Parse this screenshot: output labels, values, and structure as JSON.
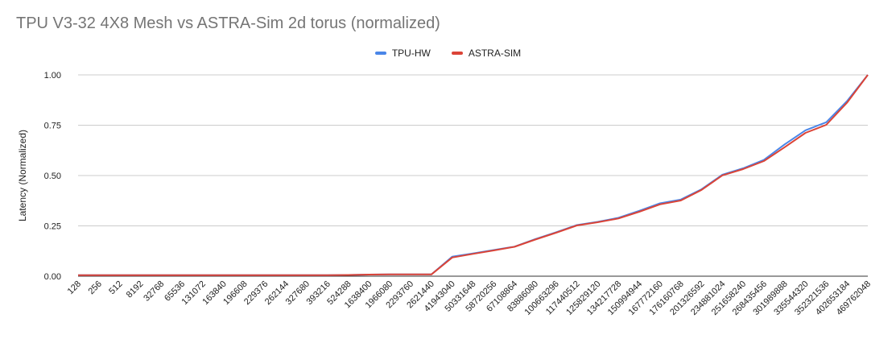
{
  "chart_data": {
    "type": "line",
    "title": "TPU V3-32 4X8 Mesh vs ASTRA-Sim 2d torus (normalized)",
    "ylabel": "Latency (Normalized)",
    "xlabel": "",
    "ylim": [
      0,
      1
    ],
    "yticks": [
      "0.00",
      "0.25",
      "0.50",
      "0.75",
      "1.00"
    ],
    "grid": true,
    "legend_position": "top-center",
    "categories": [
      "128",
      "256",
      "512",
      "8192",
      "32768",
      "65536",
      "131072",
      "163840",
      "196608",
      "229376",
      "262144",
      "327680",
      "393216",
      "524288",
      "1638400",
      "1966080",
      "2293760",
      "2621440",
      "41943040",
      "50331648",
      "58720256",
      "67108864",
      "83886080",
      "100663296",
      "117440512",
      "125829120",
      "134217728",
      "150994944",
      "167772160",
      "176160768",
      "201326592",
      "234881024",
      "251658240",
      "268435456",
      "301989888",
      "335544320",
      "352321536",
      "402653184",
      "469762048"
    ],
    "series": [
      {
        "name": "TPU-HW",
        "color": "#4a86e8",
        "values": [
          0.005,
          0.005,
          0.005,
          0.005,
          0.005,
          0.005,
          0.005,
          0.005,
          0.005,
          0.005,
          0.005,
          0.005,
          0.005,
          0.006,
          0.008,
          0.009,
          0.009,
          0.009,
          0.097,
          0.113,
          0.13,
          0.147,
          0.184,
          0.218,
          0.254,
          0.27,
          0.29,
          0.325,
          0.362,
          0.381,
          0.432,
          0.504,
          0.536,
          0.578,
          0.655,
          0.725,
          0.765,
          0.87,
          1.0
        ]
      },
      {
        "name": "ASTRA-SIM",
        "color": "#db4437",
        "values": [
          0.005,
          0.005,
          0.005,
          0.005,
          0.005,
          0.005,
          0.005,
          0.005,
          0.005,
          0.005,
          0.005,
          0.005,
          0.005,
          0.006,
          0.008,
          0.009,
          0.009,
          0.009,
          0.093,
          0.111,
          0.128,
          0.146,
          0.182,
          0.216,
          0.252,
          0.268,
          0.287,
          0.32,
          0.357,
          0.376,
          0.429,
          0.501,
          0.532,
          0.572,
          0.641,
          0.712,
          0.752,
          0.862,
          1.0
        ]
      }
    ]
  }
}
